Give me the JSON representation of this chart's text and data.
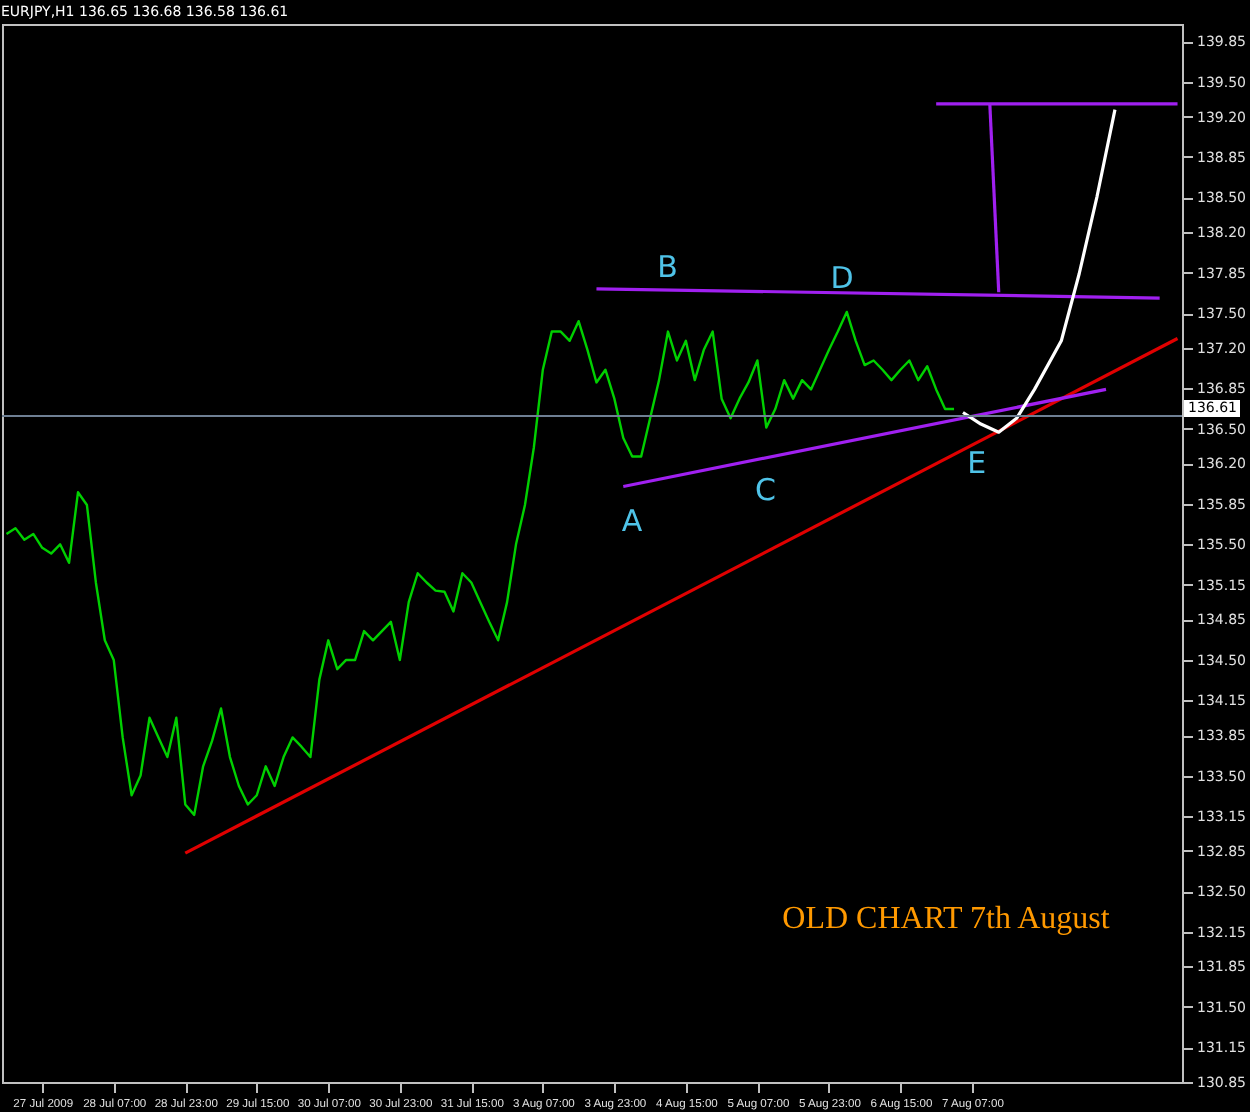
{
  "chart_data": {
    "type": "line",
    "title": "EURJPY,H1  136.65 136.68 136.58 136.61",
    "categories": [
      null,
      null,
      null,
      null,
      "27 Jul 2009",
      null,
      null,
      null,
      null,
      null,
      null,
      null,
      "28 Jul 07:00",
      null,
      null,
      null,
      null,
      null,
      null,
      null,
      "28 Jul 23:00",
      null,
      null,
      null,
      null,
      null,
      null,
      null,
      "29 Jul 15:00",
      null,
      null,
      null,
      null,
      null,
      null,
      null,
      "30 Jul 07:00",
      null,
      null,
      null,
      null,
      null,
      null,
      null,
      "30 Jul 23:00",
      null,
      null,
      null,
      null,
      null,
      null,
      null,
      "31 Jul 15:00",
      null,
      null,
      null,
      null,
      null,
      null,
      null,
      "3 Aug 07:00",
      null,
      null,
      null,
      null,
      null,
      null,
      null,
      "3 Aug 23:00",
      null,
      null,
      null,
      null,
      null,
      null,
      null,
      "4 Aug 15:00",
      null,
      null,
      null,
      null,
      null,
      null,
      null,
      "5 Aug 07:00",
      null,
      null,
      null,
      null,
      null,
      null,
      null,
      "5 Aug 23:00",
      null,
      null,
      null,
      null,
      null,
      null,
      null,
      "6 Aug 15:00",
      null,
      null,
      null,
      null,
      null,
      null,
      null,
      "7 Aug 07:00",
      null,
      null,
      null,
      null,
      null,
      null,
      null,
      null,
      null,
      null,
      null,
      null,
      null,
      null,
      null,
      null,
      null,
      null,
      null,
      null,
      null,
      null,
      null
    ],
    "ylim": [
      130.85,
      140.0
    ],
    "yticks": [
      139.85,
      {
        "value": 139.5,
        "label": "139.50"
      },
      {
        "value": 139.2,
        "label": "139.20"
      },
      138.85,
      {
        "value": 138.5,
        "label": "138.50"
      },
      {
        "value": 138.2,
        "label": "138.20"
      },
      137.85,
      {
        "value": 137.5,
        "label": "137.50"
      },
      {
        "value": 137.2,
        "label": "137.20"
      },
      136.85,
      {
        "value": 136.5,
        "label": "136.50"
      },
      {
        "value": 136.2,
        "label": "136.20"
      },
      135.85,
      {
        "value": 135.5,
        "label": "135.50"
      },
      135.15,
      134.85,
      {
        "value": 134.5,
        "label": "134.50"
      },
      134.15,
      133.85,
      {
        "value": 133.5,
        "label": "133.50"
      },
      133.15,
      132.85,
      {
        "value": 132.5,
        "label": "132.50"
      },
      132.15,
      131.85,
      {
        "value": 131.5,
        "label": "131.50"
      },
      131.15,
      130.85
    ],
    "series": [
      {
        "color": "#00d000",
        "values": [
          135.59,
          135.64,
          135.54,
          135.59,
          135.47,
          135.42,
          135.5,
          135.34,
          135.95,
          135.84,
          135.17,
          134.67,
          134.5,
          133.83,
          133.33,
          133.5,
          134.0,
          133.83,
          133.66,
          134.0,
          133.25,
          133.16,
          133.58,
          133.8,
          134.08,
          133.66,
          133.41,
          133.25,
          133.33,
          133.58,
          133.41,
          133.66,
          133.83,
          133.75,
          133.66,
          134.33,
          134.67,
          134.42,
          134.5,
          134.5,
          134.75,
          134.67,
          134.75,
          134.83,
          134.5,
          135.0,
          135.25,
          135.17,
          135.1,
          135.09,
          134.92,
          135.25,
          135.17,
          135.0,
          134.83,
          134.67,
          135.0,
          135.5,
          135.84,
          136.34,
          137.01,
          137.34,
          137.34,
          137.26,
          137.43,
          137.18,
          136.9,
          137.01,
          136.76,
          136.42,
          136.26,
          136.26,
          136.59,
          136.92,
          137.34,
          137.09,
          137.26,
          136.92,
          137.18,
          137.34,
          136.76,
          136.59,
          136.76,
          136.9,
          137.09,
          136.51,
          136.67,
          136.92,
          136.76,
          136.92,
          136.84,
          137.01,
          137.18,
          137.34,
          137.51,
          137.26,
          137.05,
          137.09,
          137.01,
          136.92,
          137.01,
          137.09,
          136.92,
          137.04,
          136.84,
          136.67,
          136.67,
          null,
          null,
          null,
          null,
          null,
          null,
          null,
          null,
          null,
          null,
          null,
          null,
          null,
          null,
          null,
          null,
          null,
          null,
          null,
          null,
          null,
          null,
          null,
          null,
          null
        ]
      },
      {
        "color": "#e00000",
        "values": [
          null,
          null,
          null,
          null,
          null,
          null,
          null,
          null,
          null,
          null,
          null,
          null,
          null,
          null,
          null,
          null,
          null,
          null,
          null,
          null,
          132.83,
          null,
          null,
          null,
          null,
          null,
          null,
          null,
          null,
          null,
          null,
          null,
          null,
          null,
          null,
          null,
          null,
          null,
          null,
          null,
          null,
          null,
          null,
          null,
          null,
          null,
          null,
          null,
          null,
          null,
          null,
          null,
          null,
          null,
          null,
          null,
          null,
          null,
          null,
          null,
          null,
          null,
          null,
          null,
          null,
          null,
          null,
          null,
          null,
          null,
          null,
          null,
          null,
          null,
          null,
          null,
          null,
          null,
          null,
          null,
          null,
          null,
          null,
          null,
          null,
          null,
          null,
          null,
          null,
          null,
          null,
          null,
          null,
          null,
          null,
          null,
          null,
          null,
          null,
          null,
          null,
          null,
          null,
          null,
          null,
          null,
          null,
          null,
          null,
          null,
          null,
          null,
          null,
          null,
          null,
          null,
          null,
          null,
          null,
          null,
          null,
          null,
          null,
          null,
          null,
          null,
          null,
          null,
          null,
          null,
          null,
          137.28
        ]
      },
      {
        "color": "#a020f0",
        "values": [
          null,
          null,
          null,
          null,
          null,
          null,
          null,
          null,
          null,
          null,
          null,
          null,
          null,
          null,
          null,
          null,
          null,
          null,
          null,
          null,
          null,
          null,
          null,
          null,
          null,
          null,
          null,
          null,
          null,
          null,
          null,
          null,
          null,
          null,
          null,
          null,
          null,
          null,
          null,
          null,
          null,
          null,
          null,
          null,
          null,
          null,
          null,
          null,
          null,
          null,
          null,
          null,
          null,
          null,
          null,
          null,
          null,
          null,
          null,
          null,
          null,
          null,
          null,
          null,
          null,
          null,
          137.71,
          null,
          null,
          null,
          null,
          null,
          null,
          null,
          null,
          null,
          null,
          null,
          null,
          null,
          null,
          null,
          null,
          null,
          null,
          null,
          null,
          null,
          null,
          null,
          null,
          null,
          null,
          null,
          null,
          null,
          null,
          null,
          null,
          null,
          null,
          null,
          null,
          null,
          null,
          null,
          null,
          null,
          null,
          null,
          null,
          null,
          null,
          null,
          null,
          null,
          null,
          null,
          null,
          null,
          null,
          null,
          null,
          null,
          null,
          null,
          null,
          null,
          null,
          137.63,
          null,
          null
        ]
      },
      {
        "color": "#a020f0",
        "values": [
          null,
          null,
          null,
          null,
          null,
          null,
          null,
          null,
          null,
          null,
          null,
          null,
          null,
          null,
          null,
          null,
          null,
          null,
          null,
          null,
          null,
          null,
          null,
          null,
          null,
          null,
          null,
          null,
          null,
          null,
          null,
          null,
          null,
          null,
          null,
          null,
          null,
          null,
          null,
          null,
          null,
          null,
          null,
          null,
          null,
          null,
          null,
          null,
          null,
          null,
          null,
          null,
          null,
          null,
          null,
          null,
          null,
          null,
          null,
          null,
          null,
          null,
          null,
          null,
          null,
          null,
          null,
          null,
          null,
          136.0,
          null,
          null,
          null,
          null,
          null,
          null,
          null,
          null,
          null,
          null,
          null,
          null,
          null,
          null,
          null,
          null,
          null,
          null,
          null,
          null,
          null,
          null,
          null,
          null,
          null,
          null,
          null,
          null,
          null,
          null,
          null,
          null,
          null,
          null,
          null,
          null,
          null,
          null,
          null,
          null,
          null,
          null,
          null,
          null,
          null,
          null,
          null,
          null,
          null,
          null,
          null,
          null,
          null,
          136.84,
          null,
          null,
          null,
          null,
          null,
          null,
          null,
          null
        ]
      },
      {
        "color": "#a020f0",
        "values": [
          null,
          null,
          null,
          null,
          null,
          null,
          null,
          null,
          null,
          null,
          null,
          null,
          null,
          null,
          null,
          null,
          null,
          null,
          null,
          null,
          null,
          null,
          null,
          null,
          null,
          null,
          null,
          null,
          null,
          null,
          null,
          null,
          null,
          null,
          null,
          null,
          null,
          null,
          null,
          null,
          null,
          null,
          null,
          null,
          null,
          null,
          null,
          null,
          null,
          null,
          null,
          null,
          null,
          null,
          null,
          null,
          null,
          null,
          null,
          null,
          null,
          null,
          null,
          null,
          null,
          null,
          null,
          null,
          null,
          null,
          null,
          null,
          null,
          null,
          null,
          null,
          null,
          null,
          null,
          null,
          null,
          null,
          null,
          null,
          null,
          null,
          null,
          null,
          null,
          null,
          null,
          null,
          null,
          null,
          null,
          null,
          null,
          null,
          null,
          null,
          null,
          null,
          null,
          null,
          139.31,
          null,
          null,
          null,
          null,
          null,
          null,
          null,
          null,
          null,
          null,
          null,
          null,
          null,
          null,
          null,
          null,
          null,
          null,
          null,
          null,
          null,
          null,
          null,
          null,
          null,
          null,
          139.31
        ]
      },
      {
        "color": "#a020f0",
        "values": [
          null,
          null,
          null,
          null,
          null,
          null,
          null,
          null,
          null,
          null,
          null,
          null,
          null,
          null,
          null,
          null,
          null,
          null,
          null,
          null,
          null,
          null,
          null,
          null,
          null,
          null,
          null,
          null,
          null,
          null,
          null,
          null,
          null,
          null,
          null,
          null,
          null,
          null,
          null,
          null,
          null,
          null,
          null,
          null,
          null,
          null,
          null,
          null,
          null,
          null,
          null,
          null,
          null,
          null,
          null,
          null,
          null,
          null,
          null,
          null,
          null,
          null,
          null,
          null,
          null,
          null,
          null,
          null,
          null,
          null,
          null,
          null,
          null,
          null,
          null,
          null,
          null,
          null,
          null,
          null,
          null,
          null,
          null,
          null,
          null,
          null,
          null,
          null,
          null,
          null,
          null,
          null,
          null,
          null,
          null,
          null,
          null,
          null,
          null,
          null,
          null,
          null,
          null,
          null,
          null,
          null,
          null,
          null,
          null,
          null,
          139.31,
          137.68,
          null,
          null,
          null,
          null,
          null,
          null,
          null,
          null,
          null,
          null,
          null,
          null,
          null,
          null,
          null,
          null,
          null,
          null,
          null,
          null
        ]
      },
      {
        "color": "#ffffff",
        "values": [
          null,
          null,
          null,
          null,
          null,
          null,
          null,
          null,
          null,
          null,
          null,
          null,
          null,
          null,
          null,
          null,
          null,
          null,
          null,
          null,
          null,
          null,
          null,
          null,
          null,
          null,
          null,
          null,
          null,
          null,
          null,
          null,
          null,
          null,
          null,
          null,
          null,
          null,
          null,
          null,
          null,
          null,
          null,
          null,
          null,
          null,
          null,
          null,
          null,
          null,
          null,
          null,
          null,
          null,
          null,
          null,
          null,
          null,
          null,
          null,
          null,
          null,
          null,
          null,
          null,
          null,
          null,
          null,
          null,
          null,
          null,
          null,
          null,
          null,
          null,
          null,
          null,
          null,
          null,
          null,
          null,
          null,
          null,
          null,
          null,
          null,
          null,
          null,
          null,
          null,
          null,
          null,
          null,
          null,
          null,
          null,
          null,
          null,
          null,
          null,
          null,
          null,
          null,
          null,
          null,
          null,
          null,
          136.64,
          null,
          136.54,
          null,
          136.47,
          null,
          136.59,
          null,
          136.84,
          null,
          null,
          137.26,
          null,
          137.84,
          null,
          138.51,
          null,
          139.26,
          null,
          null,
          null,
          null,
          null,
          null,
          null
        ]
      }
    ],
    "ref_lines": [
      {
        "axis": "y",
        "value": 136.61,
        "label": "136.61",
        "color": "#6e7f93"
      }
    ],
    "annotations": [
      "A",
      "B",
      "C",
      "D",
      "E",
      "OLD CHART 7th August"
    ]
  }
}
